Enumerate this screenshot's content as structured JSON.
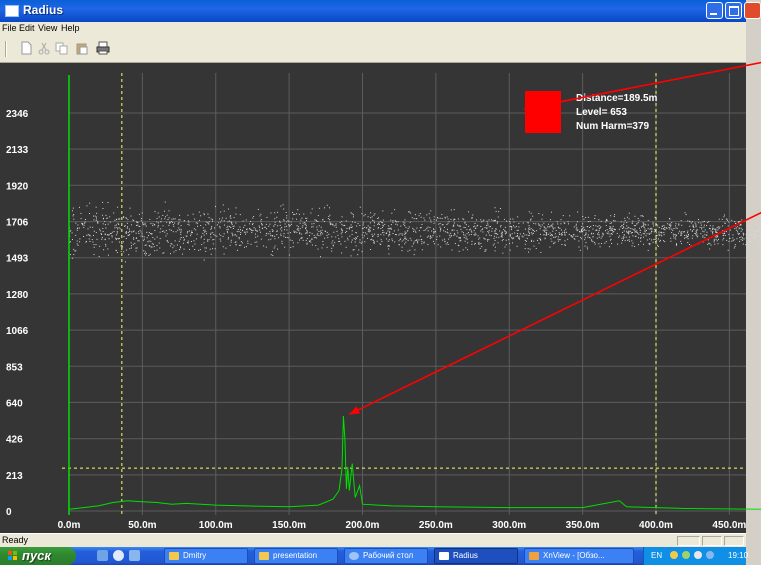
{
  "window": {
    "title": "Radius"
  },
  "menu": [
    "File",
    "Edit",
    "View",
    "Help"
  ],
  "toolbar": {
    "icons": [
      "new-file-icon",
      "cut-icon",
      "copy-icon",
      "paste-icon",
      "print-icon"
    ]
  },
  "info_box": {
    "marker_color": "#ff0000",
    "distance_label": "Distance=189.5m",
    "level_label": "Level=  653",
    "harm_label": "Num Harm=379"
  },
  "chart_data": {
    "type": "scatter",
    "title": "",
    "xlabel": "",
    "ylabel": "",
    "x_ticks": [
      "0.0m",
      "50.0m",
      "100.0m",
      "150.0m",
      "200.0m",
      "250.0m",
      "300.0m",
      "350.0m",
      "400.0m",
      "450.0m"
    ],
    "y_ticks": [
      "2346",
      "2133",
      "1920",
      "1706",
      "1493",
      "1280",
      "1066",
      "853",
      "640",
      "426",
      "213",
      "0"
    ],
    "xlim": [
      0,
      475
    ],
    "ylim": [
      0,
      2450
    ],
    "grid": true,
    "series": [
      {
        "type": "scatter",
        "color": "#d8d8d8",
        "band": {
          "x_from": 0,
          "x_to": 475,
          "center": 1650,
          "spread": 130,
          "spread_end": 70
        }
      },
      {
        "type": "line",
        "color": "#00e000",
        "points": [
          [
            0,
            10
          ],
          [
            10,
            20
          ],
          [
            20,
            30
          ],
          [
            30,
            50
          ],
          [
            40,
            60
          ],
          [
            50,
            55
          ],
          [
            60,
            50
          ],
          [
            70,
            40
          ],
          [
            80,
            45
          ],
          [
            100,
            35
          ],
          [
            120,
            30
          ],
          [
            150,
            25
          ],
          [
            170,
            35
          ],
          [
            180,
            70
          ],
          [
            184,
            120
          ],
          [
            186,
            250
          ],
          [
            187,
            560
          ],
          [
            188,
            420
          ],
          [
            189,
            130
          ],
          [
            190,
            260
          ],
          [
            191,
            120
          ],
          [
            193,
            280
          ],
          [
            195,
            80
          ],
          [
            198,
            150
          ],
          [
            200,
            40
          ],
          [
            220,
            30
          ],
          [
            250,
            25
          ],
          [
            300,
            20
          ],
          [
            350,
            20
          ],
          [
            375,
            60
          ],
          [
            380,
            25
          ],
          [
            420,
            15
          ],
          [
            475,
            10
          ]
        ]
      }
    ],
    "markers": {
      "vertical_dashed": [
        36,
        400
      ],
      "horizontal_dashed": 253,
      "marker_color": "#ffff66",
      "y_axis_color": "#00e000"
    },
    "annotations": [
      {
        "from_x": 505,
        "from_y": 2700,
        "to_x": 310,
        "to_y": 2370,
        "color": "#ff0000"
      },
      {
        "from_x": 505,
        "from_y": 1900,
        "to_x": 191,
        "to_y": 570,
        "color": "#ff0000"
      }
    ]
  },
  "status": {
    "text": "Ready"
  },
  "taskbar": {
    "start_label": "пуск",
    "tasks": [
      "Dmitry",
      "presentation",
      "Рабочий стол",
      "Radius",
      "XnView - [Обзо..."
    ],
    "tray": {
      "lang": "EN",
      "clock": "19:10"
    }
  }
}
